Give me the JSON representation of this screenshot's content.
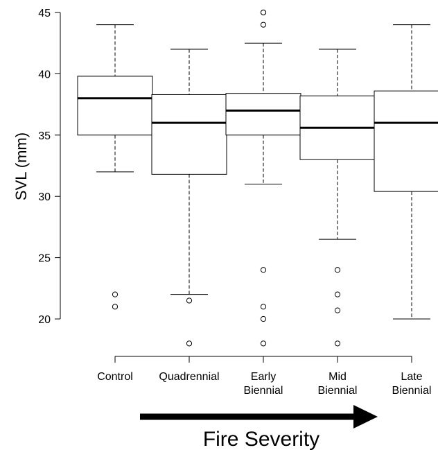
{
  "chart_data": {
    "type": "box",
    "title": "",
    "ylabel": "SVL (mm)",
    "xlabel": "",
    "ylim": [
      18,
      45
    ],
    "yticks": [
      20,
      25,
      30,
      35,
      40,
      45
    ],
    "grid": false,
    "categories": [
      {
        "lines": [
          "Control"
        ]
      },
      {
        "lines": [
          "Quadrennial"
        ]
      },
      {
        "lines": [
          "Early",
          "Biennial"
        ]
      },
      {
        "lines": [
          "Mid",
          "Biennial"
        ]
      },
      {
        "lines": [
          "Late",
          "Biennial"
        ]
      }
    ],
    "boxes": [
      {
        "whisker_low": 32,
        "q1": 35,
        "median": 38,
        "q3": 39.8,
        "whisker_high": 44,
        "outliers": [
          22,
          21
        ]
      },
      {
        "whisker_low": 22,
        "q1": 31.8,
        "median": 36,
        "q3": 38.3,
        "whisker_high": 42,
        "outliers": [
          21.5,
          18
        ]
      },
      {
        "whisker_low": 31,
        "q1": 35,
        "median": 37,
        "q3": 38.4,
        "whisker_high": 42.5,
        "outliers": [
          45,
          45,
          44,
          24,
          21,
          20,
          18
        ]
      },
      {
        "whisker_low": 26.5,
        "q1": 33,
        "median": 35.6,
        "q3": 38.2,
        "whisker_high": 42,
        "outliers": [
          24,
          22,
          20.7,
          18
        ]
      },
      {
        "whisker_low": 20,
        "q1": 30.4,
        "median": 36,
        "q3": 38.6,
        "whisker_high": 44,
        "outliers": []
      }
    ],
    "annotation": {
      "text": "Fire Severity",
      "arrow": "right"
    }
  }
}
